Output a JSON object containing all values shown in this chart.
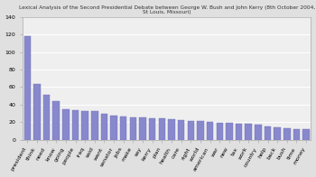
{
  "categories": [
    "president",
    "think",
    "need",
    "know",
    "going",
    "people",
    "iraq",
    "said",
    "want",
    "senator",
    "jobs",
    "make",
    "say",
    "kerry",
    "plan",
    "health",
    "care",
    "right",
    "world",
    "american",
    "war",
    "new",
    "tax",
    "work",
    "country",
    "help",
    "back",
    "bush",
    "time",
    "money"
  ],
  "values": [
    118,
    63,
    51,
    44,
    35,
    34,
    33,
    33,
    29,
    27,
    26,
    25,
    25,
    24,
    24,
    23,
    22,
    21,
    21,
    20,
    19,
    19,
    18,
    18,
    17,
    15,
    14,
    13,
    12,
    12
  ],
  "bar_color": "#8888cc",
  "bar_edge_color": "#7070bb",
  "ylim": [
    0,
    140
  ],
  "yticks": [
    0,
    20,
    40,
    60,
    80,
    100,
    120,
    140
  ],
  "background_color": "#e0e0e0",
  "plot_area_color": "#efefef",
  "title": "Lexical Analysis of the Second Presidential Debate between George W. Bush and John Kerry (8th October 2004, St Louis, Missouri)",
  "title_fontsize": 4.2,
  "grid_color": "#ffffff",
  "tick_fontsize": 4.5
}
